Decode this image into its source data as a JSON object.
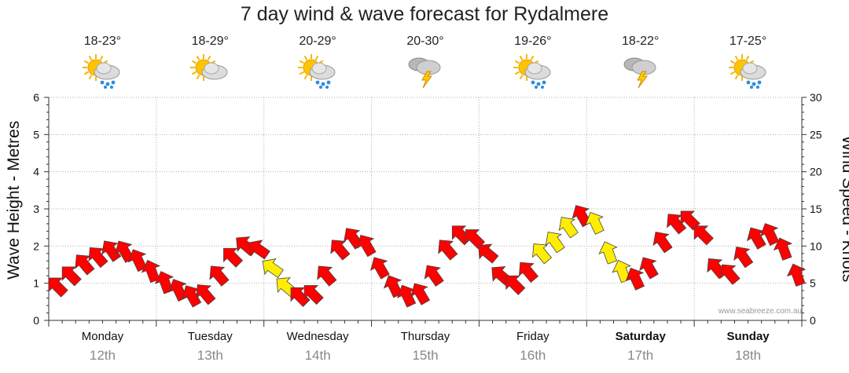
{
  "title": "7 day wind & wave forecast for Rydalmere",
  "days": [
    {
      "name": "Monday",
      "date": "12th",
      "temp": "18-23°",
      "icon": "sun-cloud-rain-icon",
      "bold": false
    },
    {
      "name": "Tuesday",
      "date": "13th",
      "temp": "18-29°",
      "icon": "sun-cloud-icon",
      "bold": false
    },
    {
      "name": "Wednesday",
      "date": "14th",
      "temp": "20-29°",
      "icon": "sun-cloud-rain-icon",
      "bold": false
    },
    {
      "name": "Thursday",
      "date": "15th",
      "temp": "20-30°",
      "icon": "storm-cloud-icon",
      "bold": false
    },
    {
      "name": "Friday",
      "date": "16th",
      "temp": "19-26°",
      "icon": "sun-cloud-rain-icon",
      "bold": false
    },
    {
      "name": "Saturday",
      "date": "17th",
      "temp": "18-22°",
      "icon": "storm-cloud-icon",
      "bold": true
    },
    {
      "name": "Sunday",
      "date": "18th",
      "temp": "17-25°",
      "icon": "sun-cloud-rain-icon",
      "bold": true
    }
  ],
  "chart_data": {
    "type": "line",
    "title": "7 day wind & wave forecast for Rydalmere",
    "ylabel_left": "Wave Height - Metres",
    "ylabel_right": "Wind Speed - Knots",
    "ylim_left": [
      0,
      6
    ],
    "ylim_right": [
      0,
      30
    ],
    "yticks_left": [
      "0",
      "1",
      "2",
      "3",
      "4",
      "5",
      "6"
    ],
    "yticks_right": [
      "0",
      "5",
      "10",
      "15",
      "20",
      "25",
      "30"
    ],
    "x_unit": "hours from Monday 00:00",
    "xlim": [
      0,
      168
    ],
    "grid": true,
    "series": [
      {
        "name": "Wind speed (knots)",
        "axis": "right",
        "x": [
          2,
          5,
          8,
          11,
          14,
          17,
          20,
          23,
          26,
          29,
          32,
          35,
          38,
          41,
          44,
          47,
          50,
          53,
          56,
          59,
          62,
          65,
          68,
          71,
          74,
          77,
          80,
          83,
          86,
          89,
          92,
          95,
          98,
          101,
          104,
          107,
          110,
          113,
          116,
          119,
          122,
          125,
          128,
          131,
          134,
          137,
          140,
          143,
          146,
          149,
          152,
          155,
          158,
          161,
          164,
          167
        ],
        "values": [
          4.5,
          6,
          7.5,
          8.5,
          9.3,
          9.2,
          8,
          6.5,
          5,
          4,
          3.2,
          3.5,
          6,
          8.5,
          10,
          9.5,
          7,
          4.5,
          3.2,
          3.5,
          6,
          9.5,
          11,
          10,
          7,
          4.5,
          3.2,
          3.5,
          6,
          9.5,
          11.5,
          11,
          9,
          6,
          4.8,
          6.5,
          9,
          10.5,
          12.5,
          14,
          13,
          9,
          6.5,
          5.5,
          7,
          10.5,
          13,
          13.5,
          11.5,
          7,
          6.2,
          8.5,
          11,
          11.5,
          9.5,
          6
        ],
        "direction_deg": [
          225,
          225,
          220,
          220,
          215,
          210,
          205,
          200,
          200,
          205,
          210,
          220,
          220,
          225,
          230,
          235,
          235,
          230,
          225,
          225,
          220,
          220,
          215,
          210,
          210,
          205,
          205,
          210,
          215,
          220,
          225,
          225,
          230,
          230,
          225,
          220,
          220,
          215,
          215,
          210,
          205,
          200,
          200,
          205,
          210,
          215,
          220,
          225,
          225,
          220,
          220,
          215,
          210,
          205,
          200,
          200
        ],
        "highlight": {
          "color": "#ffee00",
          "x": [
            50,
            53,
            110,
            113,
            116,
            122,
            125,
            128
          ]
        }
      }
    ]
  },
  "watermark": "www.seabreeze.com.au",
  "colors": {
    "wind_arrow": "#ff0000",
    "wind_arrow_strong": "#ffee00",
    "grid": "#b0b0b0"
  }
}
